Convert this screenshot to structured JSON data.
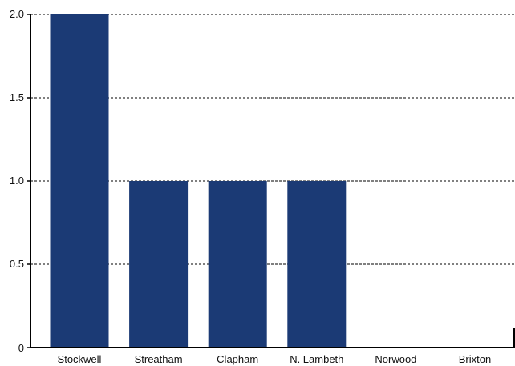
{
  "chart_data": {
    "type": "bar",
    "categories": [
      "Stockwell",
      "Streatham",
      "Clapham",
      "N. Lambeth",
      "Norwood",
      "Brixton"
    ],
    "values": [
      2,
      1,
      1,
      1,
      0,
      0
    ],
    "ylim": [
      0,
      2
    ],
    "yticks": [
      "0",
      "0.5",
      "1.0",
      "1.5",
      "2.0"
    ],
    "yticks_values": [
      0,
      0.5,
      1.0,
      1.5,
      2.0
    ],
    "title": "",
    "xlabel": "",
    "ylabel": "",
    "grid": true,
    "grid_style": "dashed",
    "bar_color": "#1b3a75",
    "legend": "none"
  }
}
